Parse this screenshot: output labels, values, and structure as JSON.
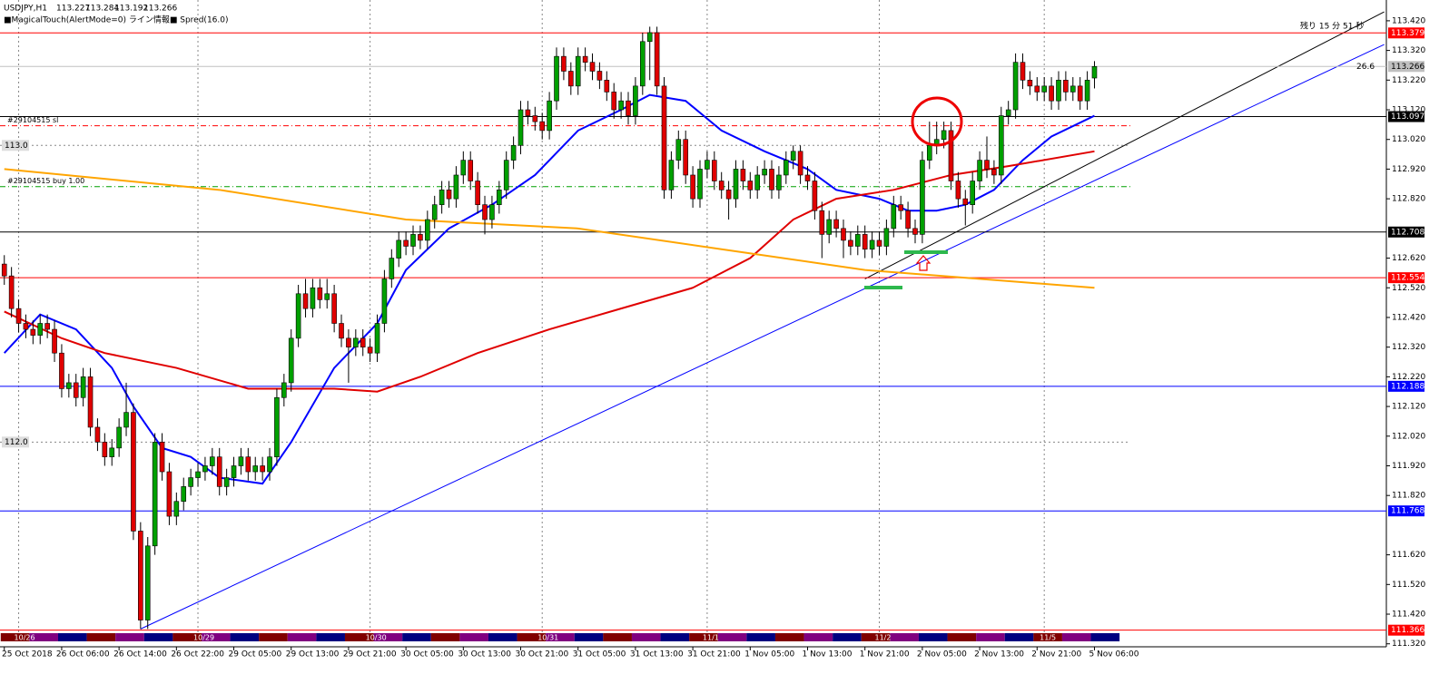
{
  "chart_data": {
    "type": "candlestick",
    "title": "USDJPY,H1",
    "indicator_label": "■MagicalTouch(AlertMode=0) ライン情報■ Spred(16.0)",
    "timer": "残り 15 分 51 秒",
    "pip_distance": 26.6,
    "up_color": "#00a000",
    "down_color": "#e00000",
    "xlim": [
      -0.6,
      192.7
    ],
    "ylim": [
      111.31,
      113.49
    ],
    "yticks": [
      {
        "value": 113.42,
        "label": "113.420"
      },
      {
        "value": 113.32,
        "label": "113.320"
      },
      {
        "value": 113.22,
        "label": "113.220"
      },
      {
        "value": 113.12,
        "label": "113.120"
      },
      {
        "value": 113.02,
        "label": "113.020"
      },
      {
        "value": 112.92,
        "label": "112.920"
      },
      {
        "value": 112.82,
        "label": "112.820"
      },
      {
        "value": 112.62,
        "label": "112.620"
      },
      {
        "value": 112.52,
        "label": "112.520"
      },
      {
        "value": 112.42,
        "label": "112.420"
      },
      {
        "value": 112.32,
        "label": "112.320"
      },
      {
        "value": 112.22,
        "label": "112.220"
      },
      {
        "value": 112.12,
        "label": "112.120"
      },
      {
        "value": 112.02,
        "label": "112.020"
      },
      {
        "value": 111.92,
        "label": "111.920"
      },
      {
        "value": 111.82,
        "label": "111.820"
      },
      {
        "value": 111.62,
        "label": "111.620"
      },
      {
        "value": 111.52,
        "label": "111.520"
      },
      {
        "value": 111.42,
        "label": "111.420"
      },
      {
        "value": 111.32,
        "label": "111.320"
      }
    ],
    "xticks": [
      {
        "value": 0,
        "label": "25 Oct 2018"
      },
      {
        "value": 8,
        "label": "26 Oct 06:00"
      },
      {
        "value": 16,
        "label": "26 Oct 14:00"
      },
      {
        "value": 24,
        "label": "26 Oct 22:00"
      },
      {
        "value": 32,
        "label": "29 Oct 05:00"
      },
      {
        "value": 40,
        "label": "29 Oct 13:00"
      },
      {
        "value": 48,
        "label": "29 Oct 21:00"
      },
      {
        "value": 56,
        "label": "30 Oct 05:00"
      },
      {
        "value": 64,
        "label": "30 Oct 13:00"
      },
      {
        "value": 72,
        "label": "30 Oct 21:00"
      },
      {
        "value": 80,
        "label": "31 Oct 05:00"
      },
      {
        "value": 88,
        "label": "31 Oct 13:00"
      },
      {
        "value": 96,
        "label": "31 Oct 21:00"
      },
      {
        "value": 104,
        "label": "1 Nov 05:00"
      },
      {
        "value": 112,
        "label": "1 Nov 13:00"
      },
      {
        "value": 120,
        "label": "1 Nov 21:00"
      },
      {
        "value": 128,
        "label": "2 Nov 05:00"
      },
      {
        "value": 136,
        "label": "2 Nov 13:00"
      },
      {
        "value": 144,
        "label": "2 Nov 21:00"
      },
      {
        "value": 152,
        "label": "5 Nov 06:00"
      }
    ],
    "day_markers": [
      {
        "value": 2,
        "label": "10/26"
      },
      {
        "value": 27,
        "label": "10/29"
      },
      {
        "value": 51,
        "label": "10/30"
      },
      {
        "value": 75,
        "label": "10/31"
      },
      {
        "value": 98,
        "label": "11/1"
      },
      {
        "value": 122,
        "label": "11/2"
      },
      {
        "value": 145,
        "label": "11/5"
      }
    ],
    "hlines": [
      {
        "value": 113.379,
        "label": "113.379",
        "color": "#ff0000"
      },
      {
        "value": 113.266,
        "label": "113.266",
        "color": "#c0c0c0"
      },
      {
        "value": 113.097,
        "label": "113.097",
        "color": "#000000"
      },
      {
        "value": 112.708,
        "label": "112.708",
        "color": "#000000"
      },
      {
        "value": 112.554,
        "label": "112.554",
        "color": "#ff0000"
      },
      {
        "value": 112.188,
        "label": "112.188",
        "color": "#0000ff"
      },
      {
        "value": 111.768,
        "label": "111.768",
        "color": "#0000ff"
      },
      {
        "value": 111.366,
        "label": "111.366",
        "color": "#ff0000"
      }
    ],
    "levels": [
      {
        "value": 113.0,
        "label": "113.0"
      },
      {
        "value": 112.0,
        "label": "112.0"
      }
    ],
    "orders": [
      {
        "value": 113.066,
        "label": "#29104515 sl",
        "color": "#ff0000"
      },
      {
        "value": 112.861,
        "label": "#29104515 buy 1.00",
        "color": "#00a000"
      }
    ],
    "moving_averages": [
      {
        "color": "#0000ff",
        "x": [
          0,
          5,
          10,
          15,
          18,
          22,
          26,
          30,
          36,
          40,
          46,
          52,
          56,
          62,
          68,
          74,
          80,
          86,
          90,
          95,
          100,
          106,
          112,
          116,
          122,
          126,
          130,
          134,
          138,
          142,
          146,
          152
        ],
        "values": [
          112.3,
          112.43,
          112.38,
          112.25,
          112.12,
          111.98,
          111.95,
          111.88,
          111.86,
          112.0,
          112.25,
          112.4,
          112.58,
          112.72,
          112.8,
          112.9,
          113.05,
          113.12,
          113.17,
          113.15,
          113.05,
          112.98,
          112.92,
          112.85,
          112.82,
          112.78,
          112.78,
          112.8,
          112.85,
          112.95,
          113.03,
          113.1
        ]
      },
      {
        "color": "#e00000",
        "x": [
          0,
          8,
          14,
          24,
          34,
          46,
          52,
          58,
          66,
          76,
          86,
          96,
          104,
          110,
          116,
          124,
          132,
          140,
          152
        ],
        "values": [
          112.44,
          112.35,
          112.3,
          112.25,
          112.18,
          112.18,
          112.17,
          112.22,
          112.3,
          112.38,
          112.45,
          112.52,
          112.62,
          112.75,
          112.82,
          112.85,
          112.9,
          112.93,
          112.98
        ]
      },
      {
        "color": "#ffa500",
        "x": [
          0,
          30,
          56,
          80,
          100,
          120,
          152
        ],
        "values": [
          112.92,
          112.85,
          112.75,
          112.72,
          112.65,
          112.58,
          112.52
        ]
      }
    ],
    "trendlines": [
      {
        "color": "#0000ff",
        "x": [
          19,
          192.4
        ],
        "values": [
          111.37,
          113.34
        ]
      },
      {
        "color": "#000000",
        "x": [
          120,
          192.4
        ],
        "values": [
          112.55,
          113.45
        ]
      }
    ],
    "ohlc": [
      [
        112.6,
        112.63,
        112.53,
        112.56
      ],
      [
        112.56,
        112.59,
        112.42,
        112.45
      ],
      [
        112.45,
        112.48,
        112.37,
        112.4
      ],
      [
        112.4,
        112.43,
        112.35,
        112.38
      ],
      [
        112.38,
        112.41,
        112.33,
        112.36
      ],
      [
        112.36,
        112.43,
        112.33,
        112.4
      ],
      [
        112.4,
        112.43,
        112.35,
        112.38
      ],
      [
        112.38,
        112.41,
        112.27,
        112.3
      ],
      [
        112.3,
        112.33,
        112.15,
        112.18
      ],
      [
        112.18,
        112.23,
        112.15,
        112.2
      ],
      [
        112.2,
        112.23,
        112.12,
        112.15
      ],
      [
        112.15,
        112.25,
        112.12,
        112.22
      ],
      [
        112.22,
        112.25,
        112.02,
        112.05
      ],
      [
        112.05,
        112.08,
        111.97,
        112.0
      ],
      [
        112.0,
        112.03,
        111.92,
        111.95
      ],
      [
        111.95,
        112.01,
        111.92,
        111.98
      ],
      [
        111.98,
        112.08,
        111.95,
        112.05
      ],
      [
        112.05,
        112.2,
        112.02,
        112.1
      ],
      [
        112.1,
        112.13,
        111.67,
        111.7
      ],
      [
        111.7,
        111.73,
        111.37,
        111.4
      ],
      [
        111.4,
        111.68,
        111.37,
        111.65
      ],
      [
        111.65,
        112.03,
        111.62,
        112.0
      ],
      [
        112.0,
        112.03,
        111.87,
        111.9
      ],
      [
        111.9,
        111.93,
        111.72,
        111.75
      ],
      [
        111.75,
        111.83,
        111.72,
        111.8
      ],
      [
        111.8,
        111.88,
        111.77,
        111.85
      ],
      [
        111.85,
        111.91,
        111.82,
        111.88
      ],
      [
        111.88,
        111.93,
        111.85,
        111.9
      ],
      [
        111.9,
        111.95,
        111.87,
        111.92
      ],
      [
        111.92,
        111.98,
        111.89,
        111.95
      ],
      [
        111.95,
        111.98,
        111.82,
        111.85
      ],
      [
        111.85,
        111.91,
        111.82,
        111.88
      ],
      [
        111.88,
        111.95,
        111.85,
        111.92
      ],
      [
        111.92,
        111.98,
        111.89,
        111.95
      ],
      [
        111.95,
        111.98,
        111.87,
        111.9
      ],
      [
        111.9,
        111.95,
        111.87,
        111.92
      ],
      [
        111.92,
        111.95,
        111.87,
        111.9
      ],
      [
        111.9,
        111.98,
        111.87,
        111.95
      ],
      [
        111.95,
        112.18,
        111.92,
        112.15
      ],
      [
        112.15,
        112.23,
        112.12,
        112.2
      ],
      [
        112.2,
        112.38,
        112.17,
        112.35
      ],
      [
        112.35,
        112.53,
        112.32,
        112.5
      ],
      [
        112.5,
        112.55,
        112.42,
        112.45
      ],
      [
        112.45,
        112.55,
        112.42,
        112.52
      ],
      [
        112.52,
        112.55,
        112.45,
        112.48
      ],
      [
        112.48,
        112.55,
        112.45,
        112.5
      ],
      [
        112.5,
        112.53,
        112.37,
        112.4
      ],
      [
        112.4,
        112.43,
        112.32,
        112.35
      ],
      [
        112.35,
        112.38,
        112.2,
        112.32
      ],
      [
        112.32,
        112.38,
        112.29,
        112.35
      ],
      [
        112.35,
        112.38,
        112.29,
        112.32
      ],
      [
        112.32,
        112.35,
        112.27,
        112.3
      ],
      [
        112.3,
        112.43,
        112.27,
        112.4
      ],
      [
        112.4,
        112.58,
        112.37,
        112.55
      ],
      [
        112.55,
        112.65,
        112.52,
        112.62
      ],
      [
        112.62,
        112.71,
        112.59,
        112.68
      ],
      [
        112.68,
        112.71,
        112.63,
        112.66
      ],
      [
        112.66,
        112.73,
        112.63,
        112.7
      ],
      [
        112.7,
        112.73,
        112.65,
        112.68
      ],
      [
        112.68,
        112.78,
        112.65,
        112.75
      ],
      [
        112.75,
        112.83,
        112.72,
        112.8
      ],
      [
        112.8,
        112.88,
        112.77,
        112.85
      ],
      [
        112.85,
        112.88,
        112.79,
        112.82
      ],
      [
        112.82,
        112.93,
        112.79,
        112.9
      ],
      [
        112.9,
        112.98,
        112.87,
        112.95
      ],
      [
        112.95,
        112.98,
        112.85,
        112.88
      ],
      [
        112.88,
        112.91,
        112.77,
        112.8
      ],
      [
        112.8,
        112.83,
        112.7,
        112.75
      ],
      [
        112.75,
        112.83,
        112.72,
        112.8
      ],
      [
        112.8,
        112.88,
        112.77,
        112.85
      ],
      [
        112.85,
        112.98,
        112.82,
        112.95
      ],
      [
        112.95,
        113.03,
        112.92,
        113.0
      ],
      [
        113.0,
        113.15,
        112.97,
        113.12
      ],
      [
        113.12,
        113.15,
        113.07,
        113.1
      ],
      [
        113.1,
        113.13,
        113.05,
        113.08
      ],
      [
        113.08,
        113.11,
        113.02,
        113.05
      ],
      [
        113.05,
        113.18,
        113.02,
        113.15
      ],
      [
        113.15,
        113.33,
        113.12,
        113.3
      ],
      [
        113.3,
        113.33,
        113.22,
        113.25
      ],
      [
        113.25,
        113.28,
        113.17,
        113.2
      ],
      [
        113.2,
        113.33,
        113.17,
        113.3
      ],
      [
        113.3,
        113.33,
        113.25,
        113.28
      ],
      [
        113.28,
        113.31,
        113.22,
        113.25
      ],
      [
        113.25,
        113.28,
        113.19,
        113.22
      ],
      [
        113.22,
        113.25,
        113.15,
        113.18
      ],
      [
        113.18,
        113.21,
        113.09,
        113.12
      ],
      [
        113.12,
        113.18,
        113.09,
        113.15
      ],
      [
        113.15,
        113.18,
        113.07,
        113.1
      ],
      [
        113.1,
        113.23,
        113.07,
        113.2
      ],
      [
        113.2,
        113.38,
        113.17,
        113.35
      ],
      [
        113.35,
        113.4,
        113.22,
        113.38
      ],
      [
        113.38,
        113.4,
        113.17,
        113.2
      ],
      [
        113.2,
        113.23,
        112.82,
        112.85
      ],
      [
        112.85,
        112.98,
        112.82,
        112.95
      ],
      [
        112.95,
        113.05,
        112.92,
        113.02
      ],
      [
        113.02,
        113.05,
        112.87,
        112.9
      ],
      [
        112.9,
        112.93,
        112.79,
        112.82
      ],
      [
        112.82,
        112.95,
        112.79,
        112.92
      ],
      [
        112.92,
        112.98,
        112.89,
        112.95
      ],
      [
        112.95,
        112.98,
        112.85,
        112.88
      ],
      [
        112.88,
        112.91,
        112.82,
        112.85
      ],
      [
        112.85,
        112.88,
        112.75,
        112.82
      ],
      [
        112.82,
        112.95,
        112.79,
        112.92
      ],
      [
        112.92,
        112.95,
        112.85,
        112.88
      ],
      [
        112.88,
        112.91,
        112.82,
        112.85
      ],
      [
        112.85,
        112.93,
        112.82,
        112.9
      ],
      [
        112.9,
        112.95,
        112.87,
        112.92
      ],
      [
        112.92,
        112.95,
        112.82,
        112.85
      ],
      [
        112.85,
        112.93,
        112.82,
        112.9
      ],
      [
        112.9,
        112.98,
        112.87,
        112.95
      ],
      [
        112.95,
        113.0,
        112.92,
        112.98
      ],
      [
        112.98,
        113.0,
        112.87,
        112.9
      ],
      [
        112.9,
        112.93,
        112.85,
        112.88
      ],
      [
        112.88,
        112.91,
        112.75,
        112.78
      ],
      [
        112.78,
        112.81,
        112.62,
        112.7
      ],
      [
        112.7,
        112.78,
        112.67,
        112.75
      ],
      [
        112.75,
        112.78,
        112.69,
        112.72
      ],
      [
        112.72,
        112.75,
        112.62,
        112.68
      ],
      [
        112.68,
        112.71,
        112.63,
        112.66
      ],
      [
        112.66,
        112.73,
        112.63,
        112.7
      ],
      [
        112.7,
        112.73,
        112.62,
        112.65
      ],
      [
        112.65,
        112.71,
        112.62,
        112.68
      ],
      [
        112.68,
        112.71,
        112.63,
        112.66
      ],
      [
        112.66,
        112.75,
        112.63,
        112.72
      ],
      [
        112.72,
        112.83,
        112.69,
        112.8
      ],
      [
        112.8,
        112.83,
        112.75,
        112.78
      ],
      [
        112.78,
        112.81,
        112.69,
        112.72
      ],
      [
        112.72,
        112.75,
        112.67,
        112.7
      ],
      [
        112.7,
        112.98,
        112.67,
        112.95
      ],
      [
        112.95,
        113.08,
        112.92,
        113.0
      ],
      [
        113.0,
        113.08,
        112.97,
        113.02
      ],
      [
        113.02,
        113.08,
        112.99,
        113.05
      ],
      [
        113.05,
        113.08,
        112.85,
        112.88
      ],
      [
        112.88,
        112.91,
        112.79,
        112.82
      ],
      [
        112.82,
        112.85,
        112.73,
        112.8
      ],
      [
        112.8,
        112.91,
        112.77,
        112.88
      ],
      [
        112.88,
        112.98,
        112.85,
        112.95
      ],
      [
        112.95,
        113.03,
        112.89,
        112.92
      ],
      [
        112.92,
        112.95,
        112.87,
        112.9
      ],
      [
        112.9,
        113.13,
        112.87,
        113.1
      ],
      [
        113.1,
        113.15,
        113.07,
        113.12
      ],
      [
        113.12,
        113.31,
        113.09,
        113.28
      ],
      [
        113.28,
        113.31,
        113.19,
        113.22
      ],
      [
        113.22,
        113.25,
        113.17,
        113.2
      ],
      [
        113.2,
        113.23,
        113.15,
        113.18
      ],
      [
        113.18,
        113.23,
        113.15,
        113.2
      ],
      [
        113.2,
        113.23,
        113.12,
        113.15
      ],
      [
        113.15,
        113.25,
        113.12,
        113.22
      ],
      [
        113.22,
        113.25,
        113.15,
        113.18
      ],
      [
        113.18,
        113.23,
        113.15,
        113.2
      ],
      [
        113.2,
        113.23,
        113.12,
        113.15
      ],
      [
        113.15,
        113.25,
        113.12,
        113.22
      ],
      [
        113.227,
        113.284,
        113.192,
        113.266
      ]
    ]
  }
}
